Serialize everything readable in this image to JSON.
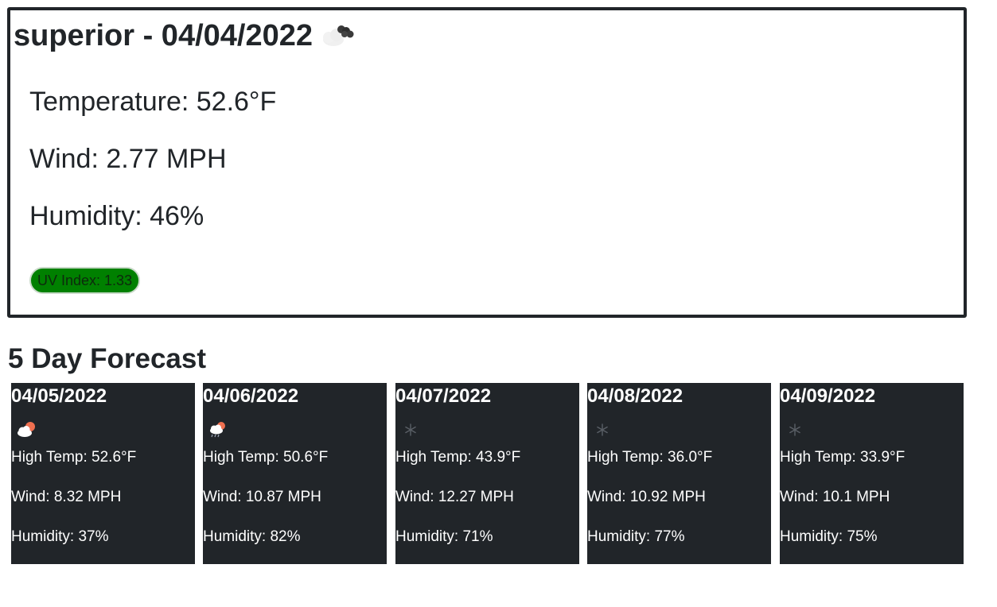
{
  "current": {
    "title": "superior - 04/04/2022",
    "icon": "broken-clouds-icon",
    "temperature": "Temperature: 52.6°F",
    "wind": "Wind: 2.77 MPH",
    "humidity": "Humidity: 46%",
    "uv_index": "UV Index: 1.33",
    "uv_color": "#008000"
  },
  "forecast": {
    "heading": "5 Day Forecast",
    "days": [
      {
        "date": "04/05/2022",
        "icon": "sun-behind-cloud-icon",
        "high": "High Temp: 52.6°F",
        "wind": "Wind: 8.32 MPH",
        "humidity": "Humidity: 37%"
      },
      {
        "date": "04/06/2022",
        "icon": "rain-with-sun-icon",
        "high": "High Temp: 50.6°F",
        "wind": "Wind: 10.87 MPH",
        "humidity": "Humidity: 82%"
      },
      {
        "date": "04/07/2022",
        "icon": "snow-icon",
        "high": "High Temp: 43.9°F",
        "wind": "Wind: 12.27 MPH",
        "humidity": "Humidity: 71%"
      },
      {
        "date": "04/08/2022",
        "icon": "snow-icon",
        "high": "High Temp: 36.0°F",
        "wind": "Wind: 10.92 MPH",
        "humidity": "Humidity: 77%"
      },
      {
        "date": "04/09/2022",
        "icon": "snow-icon",
        "high": "High Temp: 33.9°F",
        "wind": "Wind: 10.1 MPH",
        "humidity": "Humidity: 75%"
      }
    ]
  },
  "colors": {
    "card_background": "#212529",
    "border": "#212529"
  }
}
